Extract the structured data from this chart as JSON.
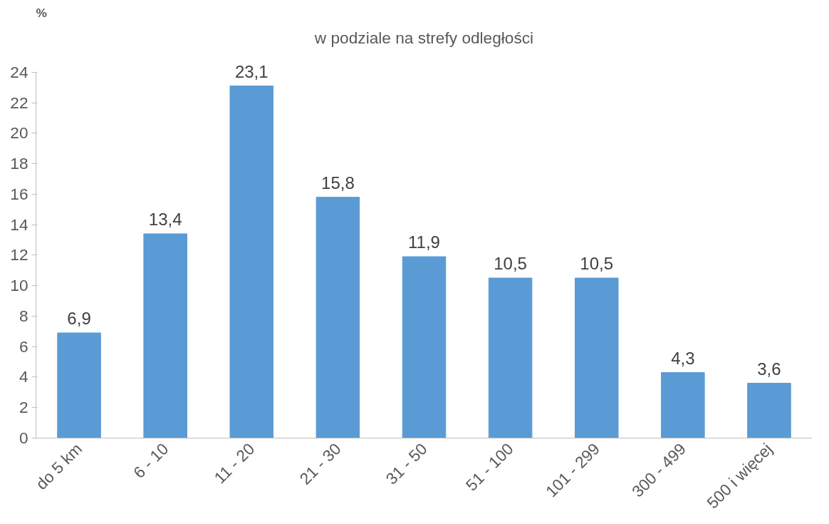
{
  "chart_data": {
    "type": "bar",
    "subtitle": "w podziale na strefy odległości",
    "ylabel": "%",
    "categories": [
      "do 5 km",
      "6 - 10",
      "11 - 20",
      "21 - 30",
      "31 - 50",
      "51 - 100",
      "101 - 299",
      "300 - 499",
      "500 i więcej"
    ],
    "values": [
      6.9,
      13.4,
      23.1,
      15.8,
      11.9,
      10.5,
      10.5,
      4.3,
      3.6
    ],
    "value_labels": [
      "6,9",
      "13,4",
      "23,1",
      "15,8",
      "11,9",
      "10,5",
      "10,5",
      "4,3",
      "3,6"
    ],
    "color": "#5b9bd5",
    "ylim": [
      0,
      24
    ],
    "yticks": [
      0,
      2,
      4,
      6,
      8,
      10,
      12,
      14,
      16,
      18,
      20,
      22,
      24
    ],
    "grid": false
  }
}
